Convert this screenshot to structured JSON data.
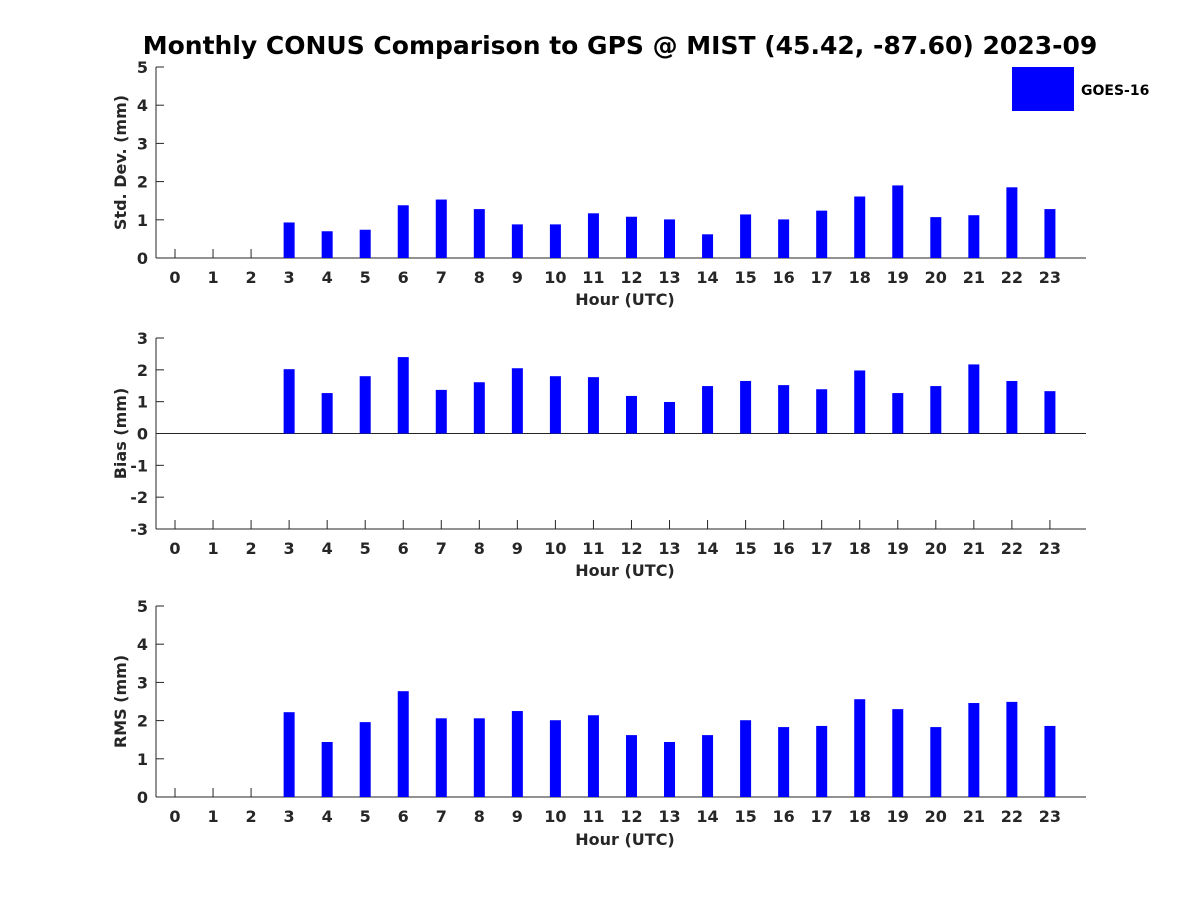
{
  "title": "Monthly CONUS Comparison to GPS @ MIST (45.42, -87.60) 2023-09",
  "legend": {
    "label": "GOES-16",
    "color": "#0000ff"
  },
  "chart_data": [
    {
      "type": "bar",
      "name": "std-dev",
      "categories": [
        "0",
        "1",
        "2",
        "3",
        "4",
        "5",
        "6",
        "7",
        "8",
        "9",
        "10",
        "11",
        "12",
        "13",
        "14",
        "15",
        "16",
        "17",
        "18",
        "19",
        "20",
        "21",
        "22",
        "23"
      ],
      "series": [
        {
          "name": "GOES-16",
          "values": [
            null,
            null,
            null,
            0.93,
            0.7,
            0.74,
            1.38,
            1.53,
            1.28,
            0.88,
            0.88,
            1.17,
            1.08,
            1.01,
            0.62,
            1.14,
            1.01,
            1.24,
            1.61,
            1.9,
            1.07,
            1.12,
            1.85,
            1.28
          ]
        }
      ],
      "xlabel": "Hour (UTC)",
      "ylabel": "Std. Dev. (mm)",
      "ylim": [
        0,
        5
      ],
      "yticks": [
        0,
        1,
        2,
        3,
        4,
        5
      ],
      "legend_position": "top-right",
      "grid": false
    },
    {
      "type": "bar",
      "name": "bias",
      "categories": [
        "0",
        "1",
        "2",
        "3",
        "4",
        "5",
        "6",
        "7",
        "8",
        "9",
        "10",
        "11",
        "12",
        "13",
        "14",
        "15",
        "16",
        "17",
        "18",
        "19",
        "20",
        "21",
        "22",
        "23"
      ],
      "series": [
        {
          "name": "GOES-16",
          "values": [
            null,
            null,
            null,
            2.02,
            1.27,
            1.8,
            2.4,
            1.37,
            1.61,
            2.05,
            1.8,
            1.77,
            1.18,
            0.99,
            1.49,
            1.65,
            1.52,
            1.39,
            1.98,
            1.27,
            1.49,
            2.17,
            1.65,
            1.33
          ]
        }
      ],
      "xlabel": "Hour (UTC)",
      "ylabel": "Bias (mm)",
      "ylim": [
        -3,
        3
      ],
      "yticks": [
        -3,
        -2,
        -1,
        0,
        1,
        2,
        3
      ],
      "baseline": 0,
      "grid": false
    },
    {
      "type": "bar",
      "name": "rms",
      "categories": [
        "0",
        "1",
        "2",
        "3",
        "4",
        "5",
        "6",
        "7",
        "8",
        "9",
        "10",
        "11",
        "12",
        "13",
        "14",
        "15",
        "16",
        "17",
        "18",
        "19",
        "20",
        "21",
        "22",
        "23"
      ],
      "series": [
        {
          "name": "GOES-16",
          "values": [
            null,
            null,
            null,
            2.22,
            1.44,
            1.96,
            2.77,
            2.06,
            2.06,
            2.25,
            2.01,
            2.14,
            1.62,
            1.44,
            1.62,
            2.01,
            1.83,
            1.86,
            2.56,
            2.3,
            1.83,
            2.46,
            2.49,
            1.86
          ]
        }
      ],
      "xlabel": "Hour (UTC)",
      "ylabel": "RMS (mm)",
      "ylim": [
        0,
        5
      ],
      "yticks": [
        0,
        1,
        2,
        3,
        4,
        5
      ],
      "grid": false
    }
  ]
}
